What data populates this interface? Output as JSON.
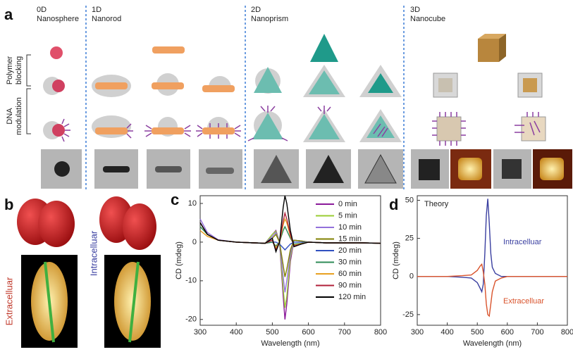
{
  "panel_a": {
    "label": "a",
    "columns": [
      {
        "dim": "0D",
        "name": "Nanosphere"
      },
      {
        "dim": "1D",
        "name": "Nanorod"
      },
      {
        "dim": "2D",
        "name": "Nanoprism"
      },
      {
        "dim": "3D",
        "name": "Nanocube"
      }
    ],
    "row_labels": [
      [
        "Polymer",
        "blocking"
      ],
      [
        "DNA",
        "modulation"
      ]
    ]
  },
  "panel_b": {
    "label": "b",
    "labels": [
      "Extracelluar",
      "Intracelluar"
    ]
  },
  "chart_data": [
    {
      "type": "line",
      "panel": "c",
      "xlabel": "Wavelength (nm)",
      "ylabel": "CD (mdeg)",
      "x": [
        300,
        320,
        350,
        400,
        450,
        480,
        500,
        510,
        520,
        530,
        535,
        540,
        550,
        560,
        580,
        600,
        650,
        700,
        750,
        800
      ],
      "xlim": [
        300,
        800
      ],
      "xticks": [
        300,
        400,
        500,
        600,
        700,
        800
      ],
      "ylim": [
        -21.5,
        12
      ],
      "yticks": [
        -20,
        -10,
        0,
        10
      ],
      "legend": "upper right",
      "series": [
        {
          "name": "0 min",
          "color": "#8b1a9a",
          "values": [
            5,
            2,
            0.5,
            0,
            -0.2,
            -0.3,
            2,
            3,
            0,
            -14,
            -20,
            -16,
            -5,
            0.5,
            0.3,
            0,
            -0.2,
            -0.2,
            -0.2,
            -0.3
          ]
        },
        {
          "name": "5 min",
          "color": "#9acd32",
          "values": [
            4,
            2,
            0.5,
            0,
            -0.2,
            -0.3,
            2,
            2.8,
            0,
            -12,
            -17,
            -14,
            -4,
            0.5,
            0.3,
            0,
            -0.2,
            -0.2,
            -0.2,
            -0.3
          ]
        },
        {
          "name": "10 min",
          "color": "#9370db",
          "values": [
            6,
            2.5,
            0.6,
            0,
            -0.2,
            -0.3,
            1.5,
            2.5,
            0,
            -9,
            -13,
            -10,
            -3,
            0.5,
            0.3,
            0,
            -0.2,
            -0.2,
            -0.2,
            -0.3
          ]
        },
        {
          "name": "15 min",
          "color": "#808000",
          "values": [
            5,
            2,
            0.5,
            0,
            -0.2,
            -0.3,
            1,
            2,
            0,
            -6,
            -9,
            -7,
            -2,
            0.5,
            0.3,
            0,
            -0.2,
            -0.2,
            -0.2,
            -0.3
          ]
        },
        {
          "name": "20 min",
          "color": "#3050c0",
          "values": [
            5,
            2,
            0.5,
            0,
            -0.2,
            -0.3,
            0,
            0,
            -0.5,
            -1.5,
            -2,
            -1.5,
            -0.5,
            0,
            0,
            0,
            -0.2,
            -0.2,
            -0.2,
            -0.3
          ]
        },
        {
          "name": "30 min",
          "color": "#2e8b57",
          "values": [
            4,
            2,
            0.5,
            0,
            -0.2,
            -0.3,
            0,
            -1,
            0,
            3,
            4,
            3,
            1,
            -0.5,
            -0.3,
            0,
            -0.2,
            -0.2,
            -0.2,
            -0.3
          ]
        },
        {
          "name": "60 min",
          "color": "#e8a020",
          "values": [
            3,
            1.5,
            0.5,
            0,
            -0.2,
            -0.3,
            0.5,
            -1.5,
            0,
            4.5,
            6,
            5,
            1.5,
            -0.8,
            -0.4,
            0,
            -0.2,
            -0.2,
            -0.2,
            -0.3
          ]
        },
        {
          "name": "90 min",
          "color": "#b0203a",
          "values": [
            5,
            2,
            0.5,
            0,
            -0.2,
            -0.3,
            0.5,
            -2,
            0,
            5.5,
            7.5,
            6,
            2,
            -1,
            -0.5,
            0,
            -0.2,
            -0.2,
            -0.2,
            -0.3
          ]
        },
        {
          "name": "120 min",
          "color": "#000000",
          "values": [
            5,
            2,
            0.5,
            0,
            -0.2,
            -0.3,
            1,
            -2.5,
            0,
            9,
            12,
            10,
            3,
            -1.2,
            -0.5,
            0,
            -0.2,
            -0.2,
            -0.2,
            -0.3
          ]
        }
      ]
    },
    {
      "type": "line",
      "panel": "d",
      "xlabel": "Wavelength (nm)",
      "ylabel": "CD (mdeg)",
      "annotation": "Theory",
      "x": [
        300,
        350,
        400,
        450,
        480,
        500,
        510,
        515,
        520,
        525,
        530,
        535,
        540,
        545,
        550,
        560,
        580,
        600,
        650,
        700,
        750,
        800
      ],
      "xlim": [
        300,
        800
      ],
      "xticks": [
        300,
        400,
        500,
        600,
        700,
        800
      ],
      "ylim": [
        -32,
        53
      ],
      "yticks": [
        -25,
        0,
        25,
        50
      ],
      "legend": "inline",
      "series": [
        {
          "name": "Intracelluar",
          "color": "#3a3fa0",
          "values": [
            0,
            0,
            0,
            -0.5,
            -1,
            -4,
            -8,
            -10,
            -5,
            15,
            40,
            51,
            35,
            15,
            6,
            2,
            0,
            0,
            0,
            0,
            0,
            0
          ]
        },
        {
          "name": "Extracelluar",
          "color": "#d9532c",
          "values": [
            0,
            0,
            0,
            0.5,
            1,
            4,
            7,
            8,
            3,
            -5,
            -18,
            -25,
            -26,
            -18,
            -10,
            -3,
            -1,
            0,
            0,
            0,
            0,
            0
          ]
        }
      ]
    }
  ]
}
